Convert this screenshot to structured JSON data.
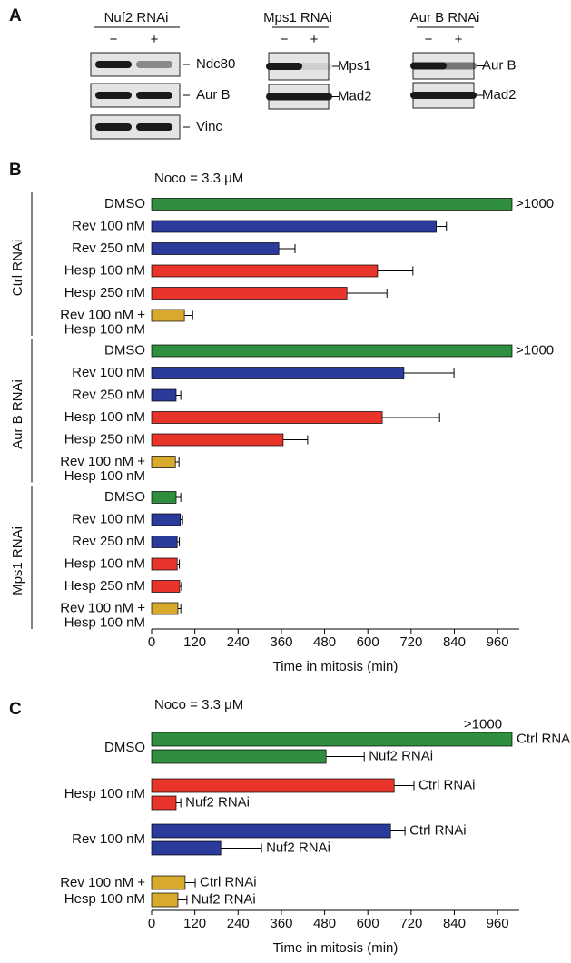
{
  "panel_a": {
    "label": "A",
    "blots": [
      {
        "title": "Nuf2 RNAi",
        "lanes": [
          "−",
          "+"
        ],
        "bands": [
          "Ndc80",
          "Aur B",
          "Vinc"
        ]
      },
      {
        "title": "Mps1 RNAi",
        "lanes": [
          "−",
          "+"
        ],
        "bands": [
          "Mps1",
          "Mad2"
        ]
      },
      {
        "title": "Aur B RNAi",
        "lanes": [
          "−",
          "+"
        ],
        "bands": [
          "Aur B",
          "Mad2"
        ]
      }
    ]
  },
  "chart_data": [
    {
      "type": "bar",
      "orientation": "horizontal",
      "panel": "B",
      "title": "Noco = 3.3 μM",
      "xlabel": "Time in mitosis (min)",
      "xlim": [
        0,
        1000
      ],
      "xticks": [
        0,
        120,
        240,
        360,
        480,
        600,
        720,
        840,
        960
      ],
      "category_colors": [
        "#2f8f3f",
        "#2b3b9c",
        "#2b3b9c",
        "#e8342b",
        "#e8342b",
        "#d7aa2c"
      ],
      "groups": [
        {
          "name": "Ctrl RNAi",
          "categories": [
            "DMSO",
            "Rev 100 nM",
            "Rev 250 nM",
            "Hesp 100 nM",
            "Hesp 250 nM",
            "Rev 100 nM +\nHesp 100 nM"
          ],
          "values": [
            1000,
            790,
            353,
            627,
            542,
            91
          ],
          "errors": [
            null,
            28,
            45,
            98,
            111,
            23
          ],
          "value_labels": [
            ">1000",
            null,
            null,
            null,
            null,
            null
          ]
        },
        {
          "name": "Aur B RNAi",
          "categories": [
            "DMSO",
            "Rev 100 nM",
            "Rev 250 nM",
            "Hesp 100 nM",
            "Hesp 250 nM",
            "Rev 100 nM +\nHesp 100 nM"
          ],
          "values": [
            1000,
            700,
            68,
            640,
            365,
            66
          ],
          "errors": [
            null,
            139,
            13,
            159,
            68,
            10
          ],
          "value_labels": [
            ">1000",
            null,
            null,
            null,
            null,
            null
          ]
        },
        {
          "name": "Mps1 RNAi",
          "categories": [
            "DMSO",
            "Rev 100 nM",
            "Rev 250 nM",
            "Hesp 100 nM",
            "Hesp 250 nM",
            "Rev 100 nM +\nHesp 100 nM"
          ],
          "values": [
            68,
            80,
            71,
            71,
            78,
            73
          ],
          "errors": [
            13,
            6,
            6,
            6,
            5,
            8
          ],
          "value_labels": [
            null,
            null,
            null,
            null,
            null,
            null
          ]
        }
      ]
    },
    {
      "type": "bar",
      "orientation": "horizontal",
      "panel": "C",
      "title": "Noco = 3.3 μM",
      "xlabel": "Time in mitosis (min)",
      "xlim": [
        0,
        1000
      ],
      "xticks": [
        0,
        120,
        240,
        360,
        480,
        600,
        720,
        840,
        960
      ],
      "categories": [
        "DMSO",
        "Hesp 100 nM",
        "Rev 100 nM",
        "Rev 100 nM +\nHesp 100 nM"
      ],
      "category_colors": [
        "#2f8f3f",
        "#e8342b",
        "#2b3b9c",
        "#d7aa2c"
      ],
      "series": [
        {
          "name": "Ctrl RNAi",
          "values": [
            1000,
            673,
            663,
            93
          ],
          "errors": [
            null,
            55,
            40,
            28
          ],
          "value_labels": [
            ">1000",
            null,
            null,
            null
          ]
        },
        {
          "name": "Nuf2 RNAi",
          "values": [
            484,
            68,
            192,
            73
          ],
          "errors": [
            106,
            13,
            113,
            25
          ],
          "value_labels": [
            null,
            null,
            null,
            null
          ]
        }
      ]
    }
  ]
}
